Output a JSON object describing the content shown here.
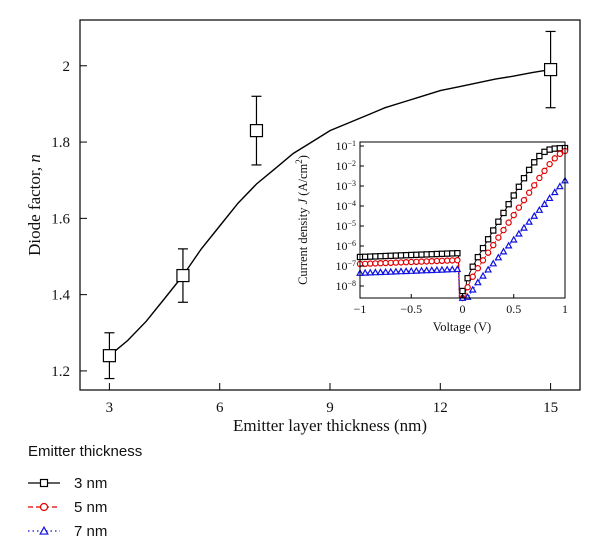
{
  "chart_data": [
    {
      "type": "scatter",
      "xlabel": "Emitter layer thickness (nm)",
      "ylabel_main": "Diode factor, ",
      "ylabel_italic": "n",
      "xlim": [
        2.2,
        15.8
      ],
      "ylim": [
        1.15,
        2.12
      ],
      "xticks": [
        3,
        6,
        9,
        12,
        15
      ],
      "yticks": [
        1.2,
        1.4,
        1.6,
        1.8,
        2.0
      ],
      "ytick_labels": [
        "1.2",
        "1.4",
        "1.6",
        "1.8",
        "2"
      ],
      "points": [
        {
          "x": 3,
          "y": 1.24,
          "err": 0.06
        },
        {
          "x": 5,
          "y": 1.45,
          "err": 0.07
        },
        {
          "x": 7,
          "y": 1.83,
          "err": 0.09
        },
        {
          "x": 15,
          "y": 1.99,
          "err": 0.1
        }
      ],
      "fit_curve": [
        [
          3,
          1.24
        ],
        [
          3.5,
          1.28
        ],
        [
          4,
          1.33
        ],
        [
          4.5,
          1.39
        ],
        [
          5,
          1.45
        ],
        [
          5.5,
          1.52
        ],
        [
          6,
          1.58
        ],
        [
          6.5,
          1.64
        ],
        [
          7,
          1.69
        ],
        [
          7.5,
          1.73
        ],
        [
          8,
          1.77
        ],
        [
          8.5,
          1.8
        ],
        [
          9,
          1.83
        ],
        [
          9.5,
          1.85
        ],
        [
          10,
          1.87
        ],
        [
          10.5,
          1.89
        ],
        [
          11,
          1.905
        ],
        [
          11.5,
          1.92
        ],
        [
          12,
          1.935
        ],
        [
          12.5,
          1.945
        ],
        [
          13,
          1.955
        ],
        [
          13.5,
          1.965
        ],
        [
          14,
          1.973
        ],
        [
          14.5,
          1.982
        ],
        [
          15,
          1.99
        ]
      ],
      "grid": false
    },
    {
      "type": "line",
      "xlabel": "Voltage (V)",
      "ylabel_main": "Current density ",
      "ylabel_italic": "J",
      "ylabel_unit": " (A/cm",
      "ylabel_sup": "2",
      "ylabel_close": ")",
      "xlim": [
        -1,
        1
      ],
      "ylim_log10": [
        -8.6,
        -0.8
      ],
      "xticks": [
        -1,
        -0.5,
        0,
        0.5,
        1
      ],
      "xtick_labels": [
        "−1",
        "−0.5",
        "0",
        "0.5",
        "1"
      ],
      "yticks_exp": [
        -8,
        -7,
        -6,
        -5,
        -4,
        -3,
        -2,
        -1
      ],
      "series": [
        {
          "name": "3 nm",
          "color": "#000000",
          "marker": "square",
          "dash": "solid",
          "i0_log10": -6.35,
          "n": 1.24
        },
        {
          "name": "5 nm",
          "color": "#e00000",
          "marker": "circle",
          "dash": "dashed",
          "i0_log10": -6.7,
          "n": 1.45
        },
        {
          "name": "7 nm",
          "color": "#1010e0",
          "marker": "triangle",
          "dash": "dotted",
          "i0_log10": -7.15,
          "n": 1.83
        }
      ]
    }
  ],
  "legend": {
    "title": "Emitter thickness",
    "items": [
      {
        "label": "3 nm",
        "color": "#000000",
        "marker": "square",
        "dash": "solid"
      },
      {
        "label": "5 nm",
        "color": "#e00000",
        "marker": "circle",
        "dash": "dashed"
      },
      {
        "label": "7 nm",
        "color": "#1010e0",
        "marker": "triangle",
        "dash": "dotted"
      }
    ]
  }
}
